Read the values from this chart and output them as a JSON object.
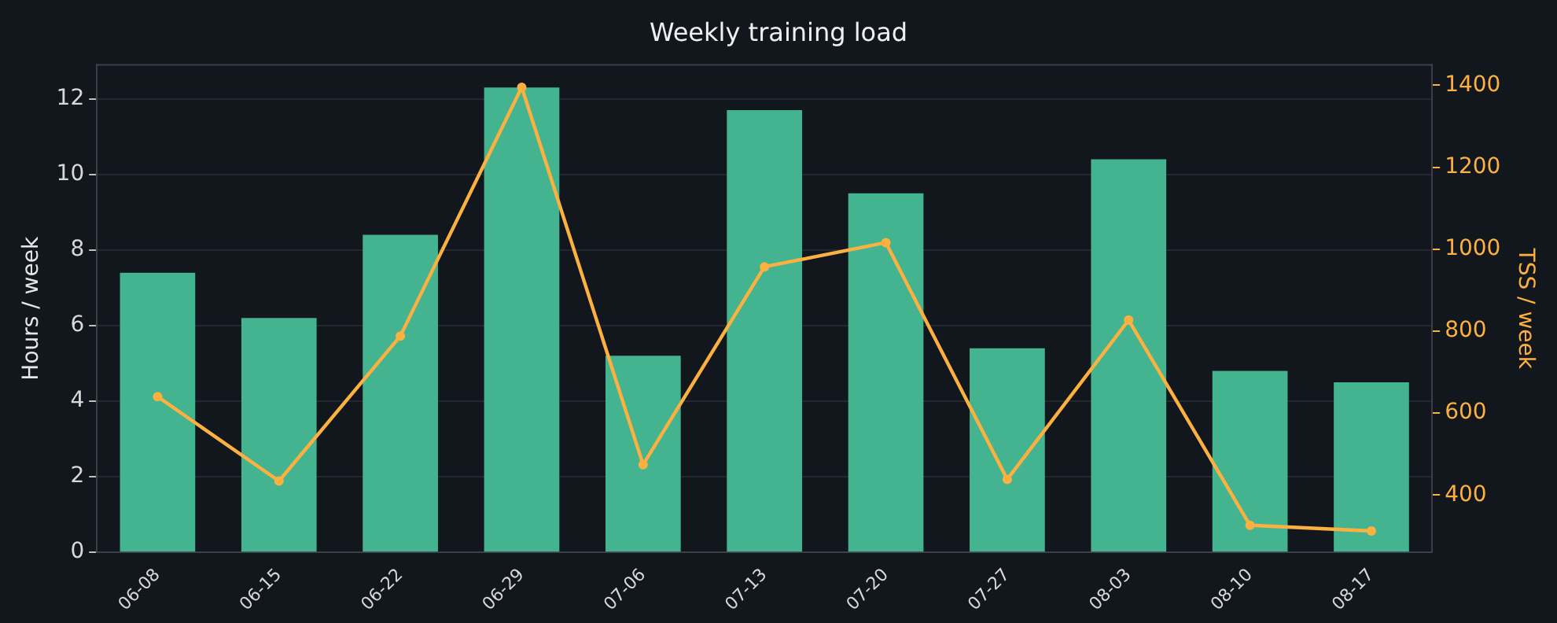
{
  "chart_data": {
    "type": "bar",
    "title": "Weekly training load",
    "ylabel": "Hours / week",
    "y2label": "TSS / week",
    "categories": [
      "06-08",
      "06-15",
      "06-22",
      "06-29",
      "07-06",
      "07-13",
      "07-20",
      "07-27",
      "08-03",
      "08-10",
      "08-17"
    ],
    "series": [
      {
        "color": "#43b48f",
        "values": [
          7.4,
          6.2,
          8.4,
          12.3,
          5.2,
          11.7,
          9.5,
          5.4,
          10.4,
          4.8,
          4.5
        ]
      },
      {
        "type": "line",
        "axis": "y2",
        "color": "#fbb040",
        "marker": "circle",
        "values": [
          640,
          434,
          788,
          1395,
          474,
          957,
          1016,
          438,
          827,
          326,
          312
        ]
      }
    ],
    "ylim": [
      0,
      12.9
    ],
    "yticks": [
      0,
      2,
      4,
      6,
      8,
      10,
      12
    ],
    "y2lim": [
      260,
      1450
    ],
    "y2ticks": [
      400,
      600,
      800,
      1000,
      1200,
      1400
    ],
    "grid": "y",
    "legend": false
  }
}
